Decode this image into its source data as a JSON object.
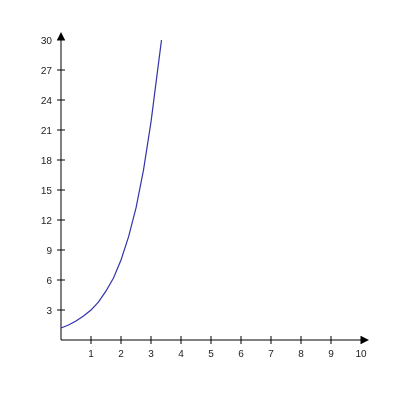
{
  "chart_data": {
    "type": "line",
    "title": "",
    "xlabel": "",
    "ylabel": "",
    "xlim": [
      0,
      10
    ],
    "ylim": [
      0,
      30
    ],
    "grid": false,
    "x_ticks": [
      1,
      2,
      3,
      4,
      5,
      6,
      7,
      8,
      9,
      10
    ],
    "y_ticks": [
      3,
      6,
      9,
      12,
      15,
      18,
      21,
      24,
      27,
      30
    ],
    "series": [
      {
        "color": "#3333aa",
        "points": [
          [
            0,
            1.2
          ],
          [
            0.25,
            1.5
          ],
          [
            0.5,
            1.9
          ],
          [
            0.75,
            2.4
          ],
          [
            1,
            3.0
          ],
          [
            1.25,
            3.8
          ],
          [
            1.5,
            4.9
          ],
          [
            1.75,
            6.2
          ],
          [
            2,
            8.0
          ],
          [
            2.25,
            10.3
          ],
          [
            2.5,
            13.2
          ],
          [
            2.75,
            17.0
          ],
          [
            3,
            21.8
          ],
          [
            3.2,
            26.5
          ],
          [
            3.35,
            30.0
          ]
        ]
      }
    ]
  }
}
